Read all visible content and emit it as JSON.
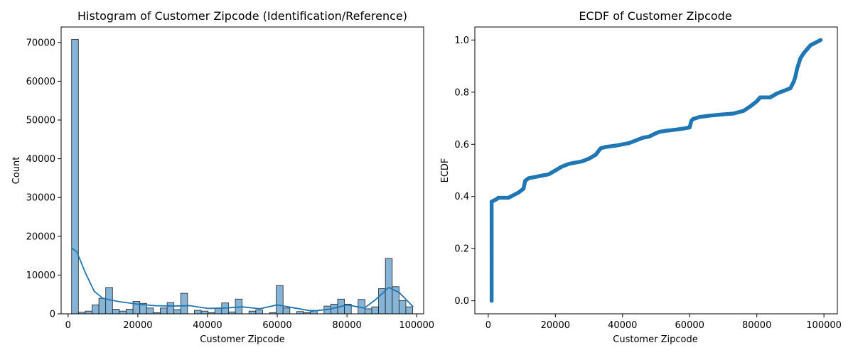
{
  "chart_data": [
    {
      "type": "bar",
      "title": "Histogram of Customer Zipcode (Identification/Reference)",
      "xlabel": "Customer Zipcode",
      "ylabel": "Count",
      "xlim": [
        -2000,
        102000
      ],
      "ylim": [
        0,
        74000
      ],
      "xticks": [
        0,
        20000,
        40000,
        60000,
        80000,
        100000
      ],
      "yticks": [
        0,
        10000,
        20000,
        30000,
        40000,
        50000,
        60000,
        70000
      ],
      "bin_edges": [
        1001,
        2958,
        4915,
        6872,
        8829,
        10786,
        12743,
        14700,
        16657,
        18614,
        20571,
        22528,
        24485,
        26442,
        28399,
        30356,
        32313,
        34270,
        36227,
        38184,
        40141,
        42098,
        44055,
        46012,
        47969,
        49926,
        51883,
        53840,
        55797,
        57754,
        59711,
        61668,
        63625,
        65582,
        67539,
        69496,
        71453,
        73410,
        75367,
        77324,
        79281,
        81238,
        83195,
        85152,
        87109,
        89066,
        91023,
        92980,
        94937,
        96894,
        98851
      ],
      "values": [
        70800,
        400,
        700,
        2300,
        4000,
        6800,
        1200,
        700,
        1200,
        3200,
        2700,
        1500,
        300,
        1500,
        2900,
        1100,
        5300,
        0,
        900,
        700,
        300,
        1400,
        2800,
        500,
        3800,
        0,
        700,
        1000,
        0,
        300,
        7300,
        1500,
        0,
        600,
        300,
        900,
        0,
        2000,
        2500,
        3800,
        2500,
        0,
        3700,
        1300,
        1800,
        6500,
        14300,
        7000,
        3400,
        1800
      ],
      "kde": {
        "x": [
          1000,
          2500,
          5000,
          7500,
          10000,
          12500,
          15000,
          20000,
          25000,
          30000,
          35000,
          40000,
          45000,
          50000,
          55000,
          60000,
          65000,
          70000,
          75000,
          80000,
          85000,
          88000,
          92000,
          95000,
          99000
        ],
        "y": [
          17000,
          16000,
          10500,
          5800,
          4000,
          3500,
          3100,
          2500,
          2100,
          2000,
          2100,
          1400,
          1500,
          1800,
          1300,
          2300,
          1500,
          700,
          1200,
          2300,
          1500,
          3500,
          6800,
          5500,
          1800
        ]
      },
      "colors": {
        "bar_fill": "#7eb0d5",
        "bar_edge": "#1f1f1f",
        "kde_line": "#1f77b4"
      }
    },
    {
      "type": "scatter",
      "title": "ECDF of Customer Zipcode",
      "xlabel": "Customer Zipcode",
      "ylabel": "ECDF",
      "xlim": [
        -4000,
        104000
      ],
      "ylim": [
        -0.05,
        1.05
      ],
      "xticks": [
        0,
        20000,
        40000,
        60000,
        80000,
        100000
      ],
      "yticks": [
        0.0,
        0.2,
        0.4,
        0.6,
        0.8,
        1.0
      ],
      "points": [
        [
          1001,
          0.0
        ],
        [
          1001,
          0.05
        ],
        [
          1001,
          0.1
        ],
        [
          1001,
          0.15
        ],
        [
          1001,
          0.2
        ],
        [
          1001,
          0.25
        ],
        [
          1001,
          0.3
        ],
        [
          1001,
          0.35
        ],
        [
          1001,
          0.38
        ],
        [
          2500,
          0.39
        ],
        [
          3000,
          0.395
        ],
        [
          6000,
          0.395
        ],
        [
          7500,
          0.405
        ],
        [
          9000,
          0.415
        ],
        [
          10500,
          0.43
        ],
        [
          11000,
          0.46
        ],
        [
          12000,
          0.47
        ],
        [
          14000,
          0.475
        ],
        [
          16000,
          0.48
        ],
        [
          18000,
          0.485
        ],
        [
          20000,
          0.5
        ],
        [
          22000,
          0.515
        ],
        [
          24000,
          0.525
        ],
        [
          26000,
          0.53
        ],
        [
          28000,
          0.535
        ],
        [
          30000,
          0.545
        ],
        [
          32000,
          0.56
        ],
        [
          33500,
          0.585
        ],
        [
          35000,
          0.59
        ],
        [
          38000,
          0.595
        ],
        [
          40000,
          0.6
        ],
        [
          42000,
          0.605
        ],
        [
          44000,
          0.615
        ],
        [
          46000,
          0.625
        ],
        [
          48000,
          0.63
        ],
        [
          49500,
          0.64
        ],
        [
          51000,
          0.648
        ],
        [
          53000,
          0.652
        ],
        [
          55000,
          0.655
        ],
        [
          58000,
          0.66
        ],
        [
          60000,
          0.665
        ],
        [
          60500,
          0.69
        ],
        [
          61000,
          0.697
        ],
        [
          63000,
          0.705
        ],
        [
          66000,
          0.71
        ],
        [
          70000,
          0.715
        ],
        [
          73000,
          0.718
        ],
        [
          76000,
          0.728
        ],
        [
          78000,
          0.745
        ],
        [
          80000,
          0.765
        ],
        [
          81000,
          0.78
        ],
        [
          84000,
          0.78
        ],
        [
          86000,
          0.795
        ],
        [
          88000,
          0.805
        ],
        [
          90000,
          0.815
        ],
        [
          91000,
          0.84
        ],
        [
          91500,
          0.86
        ],
        [
          92000,
          0.89
        ],
        [
          93000,
          0.93
        ],
        [
          94000,
          0.95
        ],
        [
          95000,
          0.965
        ],
        [
          96000,
          0.98
        ],
        [
          97500,
          0.99
        ],
        [
          99000,
          1.0
        ]
      ],
      "colors": {
        "marker": "#1f77b4"
      }
    }
  ]
}
